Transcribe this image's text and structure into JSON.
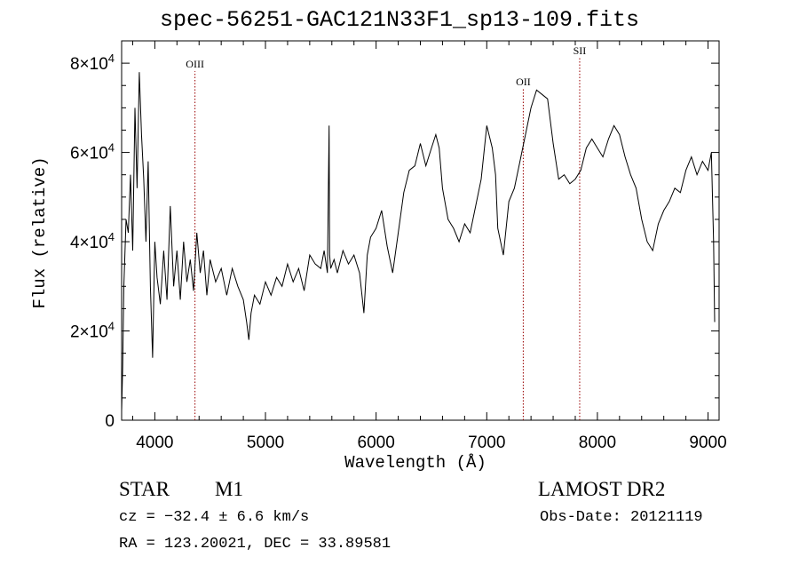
{
  "title": "spec-56251-GAC121N33F1_sp13-109.fits",
  "info": {
    "class": "STAR",
    "subclass": "M1",
    "survey": "LAMOST DR2",
    "cz": "cz = −32.4 ± 6.6 km/s",
    "obsdate": "Obs-Date: 20121119",
    "radec": "RA = 123.20021, DEC =  33.89581"
  },
  "colors": {
    "spectrum": "#000000",
    "line_marker": "#990000",
    "axes": "#000000"
  },
  "chart_data": {
    "type": "line",
    "title": "spec-56251-GAC121N33F1_sp13-109.fits",
    "xlabel": "Wavelength (Å)",
    "ylabel": "Flux (relative)",
    "xlim": [
      3700,
      9100
    ],
    "ylim": [
      0,
      85000
    ],
    "x_ticks": [
      4000,
      5000,
      6000,
      7000,
      8000,
      9000
    ],
    "x_tick_labels": [
      "4000",
      "5000",
      "6000",
      "7000",
      "8000",
      "9000"
    ],
    "y_ticks": [
      0,
      20000,
      40000,
      60000,
      80000
    ],
    "y_tick_labels": [
      "0",
      "2×10^4",
      "4×10^4",
      "6×10^4",
      "8×10^4"
    ],
    "grid": false,
    "line_markers": [
      {
        "label": "OIII",
        "x": 4363,
        "label_y": 79000
      },
      {
        "label": "OII",
        "x": 7330,
        "label_y": 75000
      },
      {
        "label": "SII",
        "x": 7840,
        "label_y": 82000
      }
    ],
    "spectrum": {
      "name": "",
      "x": [
        3700,
        3710,
        3720,
        3740,
        3760,
        3780,
        3800,
        3820,
        3840,
        3860,
        3880,
        3900,
        3920,
        3940,
        3960,
        3980,
        4000,
        4020,
        4050,
        4080,
        4110,
        4140,
        4170,
        4200,
        4230,
        4260,
        4290,
        4320,
        4350,
        4380,
        4410,
        4440,
        4470,
        4500,
        4550,
        4600,
        4650,
        4700,
        4750,
        4800,
        4830,
        4850,
        4870,
        4900,
        4950,
        5000,
        5050,
        5100,
        5150,
        5200,
        5250,
        5300,
        5350,
        5400,
        5450,
        5500,
        5530,
        5560,
        5575,
        5580,
        5590,
        5620,
        5650,
        5700,
        5750,
        5800,
        5850,
        5890,
        5920,
        5950,
        6000,
        6050,
        6100,
        6150,
        6200,
        6250,
        6300,
        6350,
        6400,
        6450,
        6500,
        6540,
        6570,
        6600,
        6650,
        6700,
        6750,
        6800,
        6850,
        6900,
        6950,
        7000,
        7050,
        7080,
        7100,
        7150,
        7200,
        7250,
        7300,
        7350,
        7400,
        7450,
        7500,
        7550,
        7600,
        7650,
        7700,
        7750,
        7800,
        7850,
        7900,
        7950,
        8000,
        8050,
        8100,
        8150,
        8200,
        8250,
        8300,
        8350,
        8400,
        8450,
        8500,
        8550,
        8600,
        8650,
        8700,
        8750,
        8800,
        8850,
        8900,
        8950,
        9000,
        9030,
        9050,
        9060
      ],
      "y": [
        2000,
        12000,
        30000,
        45000,
        42000,
        55000,
        38000,
        70000,
        52000,
        78000,
        64000,
        54000,
        40000,
        58000,
        30000,
        14000,
        40000,
        32000,
        26000,
        38000,
        27000,
        48000,
        30000,
        38000,
        27000,
        40000,
        31000,
        36000,
        29000,
        42000,
        33000,
        38000,
        28000,
        36000,
        31000,
        34000,
        28000,
        34000,
        30000,
        27000,
        22000,
        18000,
        24000,
        28000,
        26000,
        31000,
        28000,
        32000,
        30000,
        35000,
        31000,
        34000,
        29000,
        37000,
        35000,
        34000,
        38000,
        33000,
        66000,
        37000,
        34000,
        36000,
        33000,
        38000,
        35000,
        37000,
        33000,
        24000,
        37000,
        41000,
        43000,
        47000,
        39000,
        33000,
        42000,
        51000,
        56000,
        57000,
        62000,
        57000,
        61000,
        64000,
        61000,
        52000,
        45000,
        43000,
        40000,
        44000,
        42000,
        48000,
        54000,
        66000,
        61000,
        55000,
        43000,
        37000,
        49000,
        52000,
        58000,
        64000,
        70000,
        74000,
        73000,
        72000,
        62000,
        54000,
        55000,
        53000,
        54000,
        56000,
        61000,
        63000,
        61000,
        59000,
        63000,
        66000,
        64000,
        59000,
        55000,
        52000,
        45000,
        40000,
        38000,
        44000,
        47000,
        49000,
        52000,
        51000,
        56000,
        59000,
        55000,
        58000,
        56000,
        60000,
        40000,
        22000
      ]
    }
  }
}
